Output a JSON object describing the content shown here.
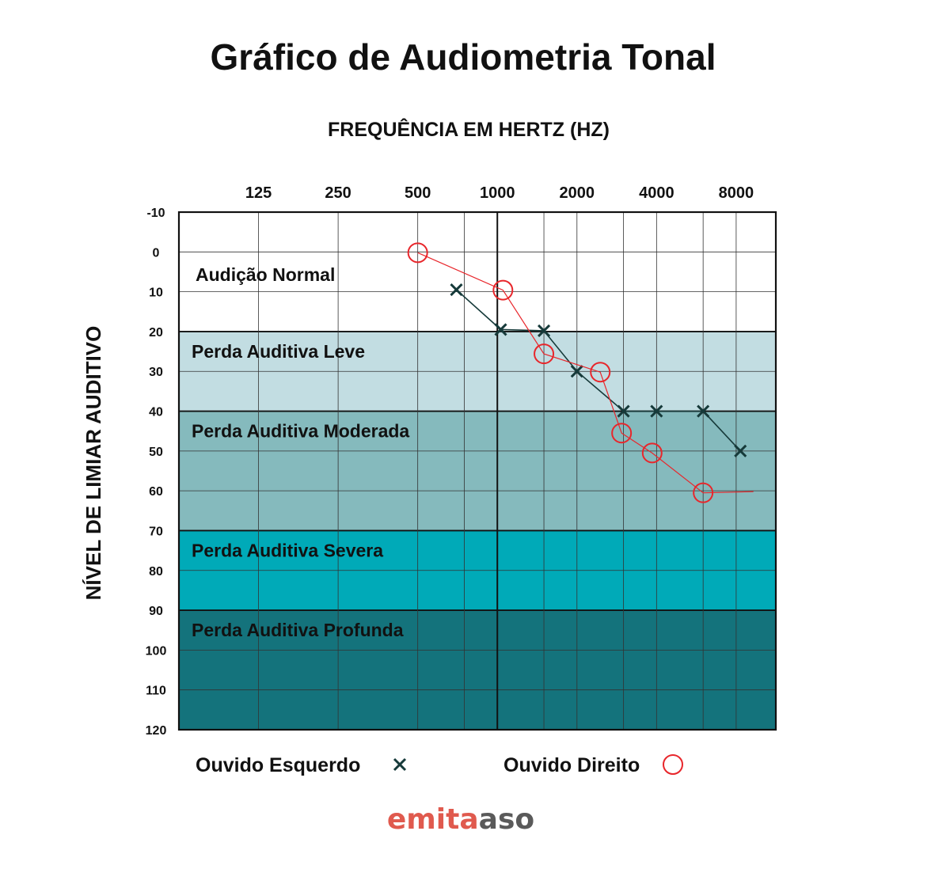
{
  "title": "Gráfico de Audiometria Tonal",
  "logo": {
    "part1": "emita",
    "part2": "aso",
    "color1": "#e05a4e",
    "color2": "#5a5a5a"
  },
  "chart_data": {
    "type": "line",
    "xlabel": "FREQUÊNCIA EM HERTZ (HZ)",
    "ylabel": "NÍVEL DE LIMIAR AUDITIVO",
    "x_scale": "log2",
    "xlim": [
      62.5,
      11300
    ],
    "x_ticks": [
      125,
      250,
      500,
      1000,
      2000,
      4000,
      8000
    ],
    "x_ticks_labeled": [
      125,
      250,
      500,
      1000,
      2000,
      4000,
      8000
    ],
    "x_ticks_minor": [
      750,
      1500,
      3000,
      6000
    ],
    "ylim": [
      -10,
      120
    ],
    "y_inverted": true,
    "y_ticks": [
      -10,
      0,
      10,
      20,
      30,
      40,
      50,
      60,
      70,
      80,
      90,
      100,
      110,
      120
    ],
    "grid": true,
    "bands": [
      {
        "label": "Audição Normal",
        "from": -10,
        "to": 20,
        "color": "#ffffff"
      },
      {
        "label": "Perda Auditiva Leve",
        "from": 20,
        "to": 40,
        "color": "#c2dde2"
      },
      {
        "label": "Perda Auditiva Moderada",
        "from": 40,
        "to": 70,
        "color": "#85babd"
      },
      {
        "label": "Perda Auditiva Severa",
        "from": 70,
        "to": 90,
        "color": "#00aab8"
      },
      {
        "label": "Perda Auditiva Profunda",
        "from": 90,
        "to": 120,
        "color": "#14737c"
      }
    ],
    "series": [
      {
        "name": "Ouvido Esquerdo",
        "marker": "x",
        "color": "#163a3a",
        "points": [
          {
            "x": 700,
            "y": 9.5
          },
          {
            "x": 1030,
            "y": 19.5
          },
          {
            "x": 1500,
            "y": 19.8
          },
          {
            "x": 2000,
            "y": 30
          },
          {
            "x": 3000,
            "y": 40
          },
          {
            "x": 4000,
            "y": 40
          },
          {
            "x": 6000,
            "y": 40
          },
          {
            "x": 8300,
            "y": 50
          }
        ]
      },
      {
        "name": "Ouvido Direito",
        "marker": "o",
        "color": "#e8262b",
        "points": [
          {
            "x": 500,
            "y": 0.2
          },
          {
            "x": 1050,
            "y": 9.6
          },
          {
            "x": 1500,
            "y": 25.6
          },
          {
            "x": 2450,
            "y": 30.2
          },
          {
            "x": 2950,
            "y": 45.5
          },
          {
            "x": 3850,
            "y": 50.5
          },
          {
            "x": 6000,
            "y": 60.5
          },
          {
            "x": 9300,
            "y": 60.2
          }
        ]
      }
    ]
  }
}
